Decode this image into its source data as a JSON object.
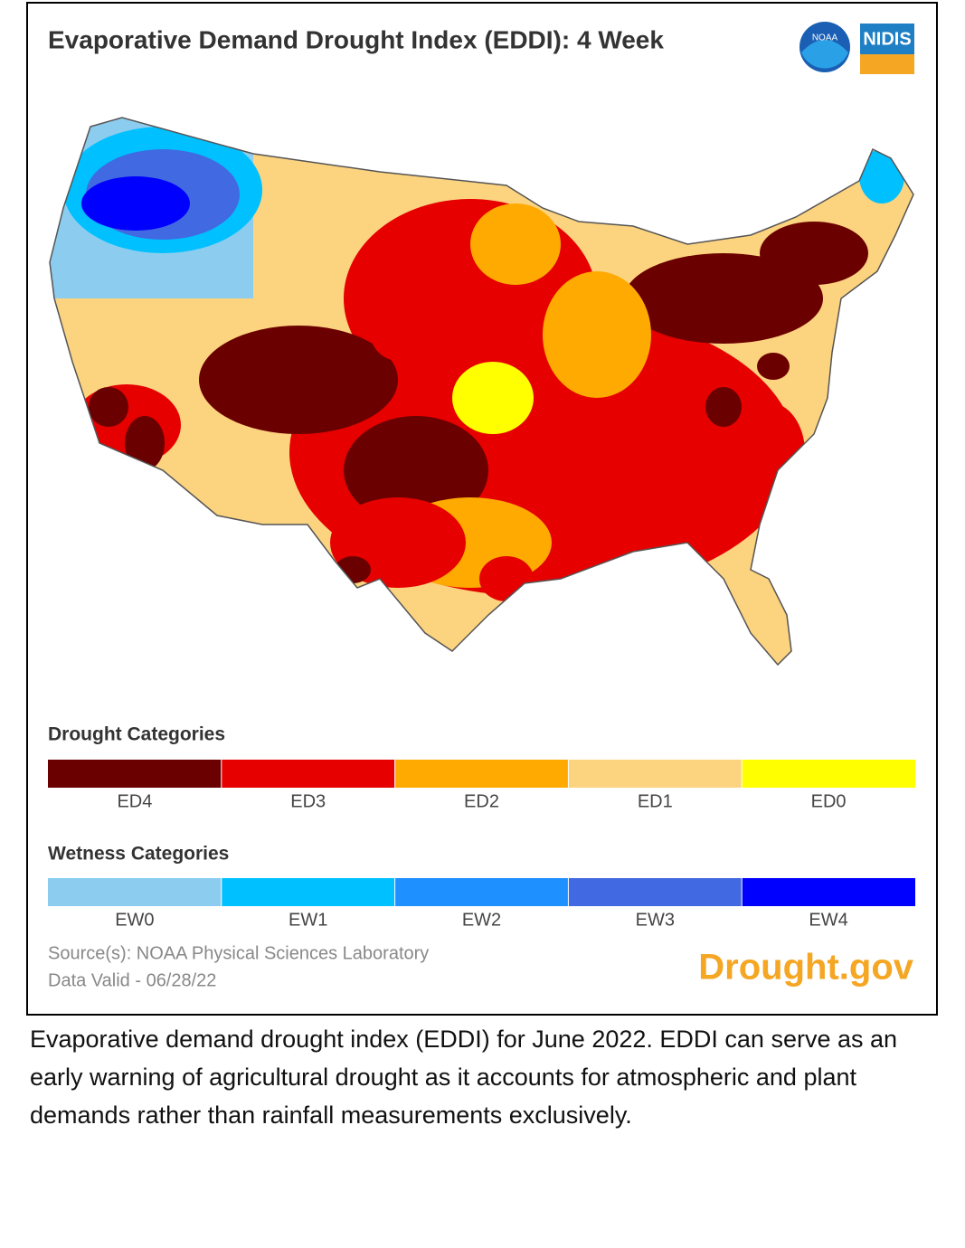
{
  "header": {
    "title": "Evaporative Demand Drought Index (EDDI): 4 Week",
    "logos": [
      "NOAA",
      "NIDIS"
    ]
  },
  "legend": {
    "drought": {
      "title": "Drought Categories",
      "items": [
        {
          "label": "ED4",
          "color": "#6b0000"
        },
        {
          "label": "ED3",
          "color": "#e60000"
        },
        {
          "label": "ED2",
          "color": "#ffaa00"
        },
        {
          "label": "ED1",
          "color": "#fcd37f"
        },
        {
          "label": "ED0",
          "color": "#ffff00"
        }
      ]
    },
    "wetness": {
      "title": "Wetness Categories",
      "items": [
        {
          "label": "EW0",
          "color": "#8ccdef"
        },
        {
          "label": "EW1",
          "color": "#00c0ff"
        },
        {
          "label": "EW2",
          "color": "#1e90ff"
        },
        {
          "label": "EW3",
          "color": "#4169e1"
        },
        {
          "label": "EW4",
          "color": "#0000ff"
        }
      ]
    }
  },
  "footer": {
    "source": "Source(s): NOAA Physical Sciences Laboratory",
    "valid": "Data Valid - 06/28/22",
    "brand": "Drought.gov"
  },
  "caption": "Evaporative demand drought index (EDDI) for June 2022. EDDI can serve as an early warning of agricultural drought as it accounts for atmospheric and plant demands rather than rainfall measurements exclusively."
}
